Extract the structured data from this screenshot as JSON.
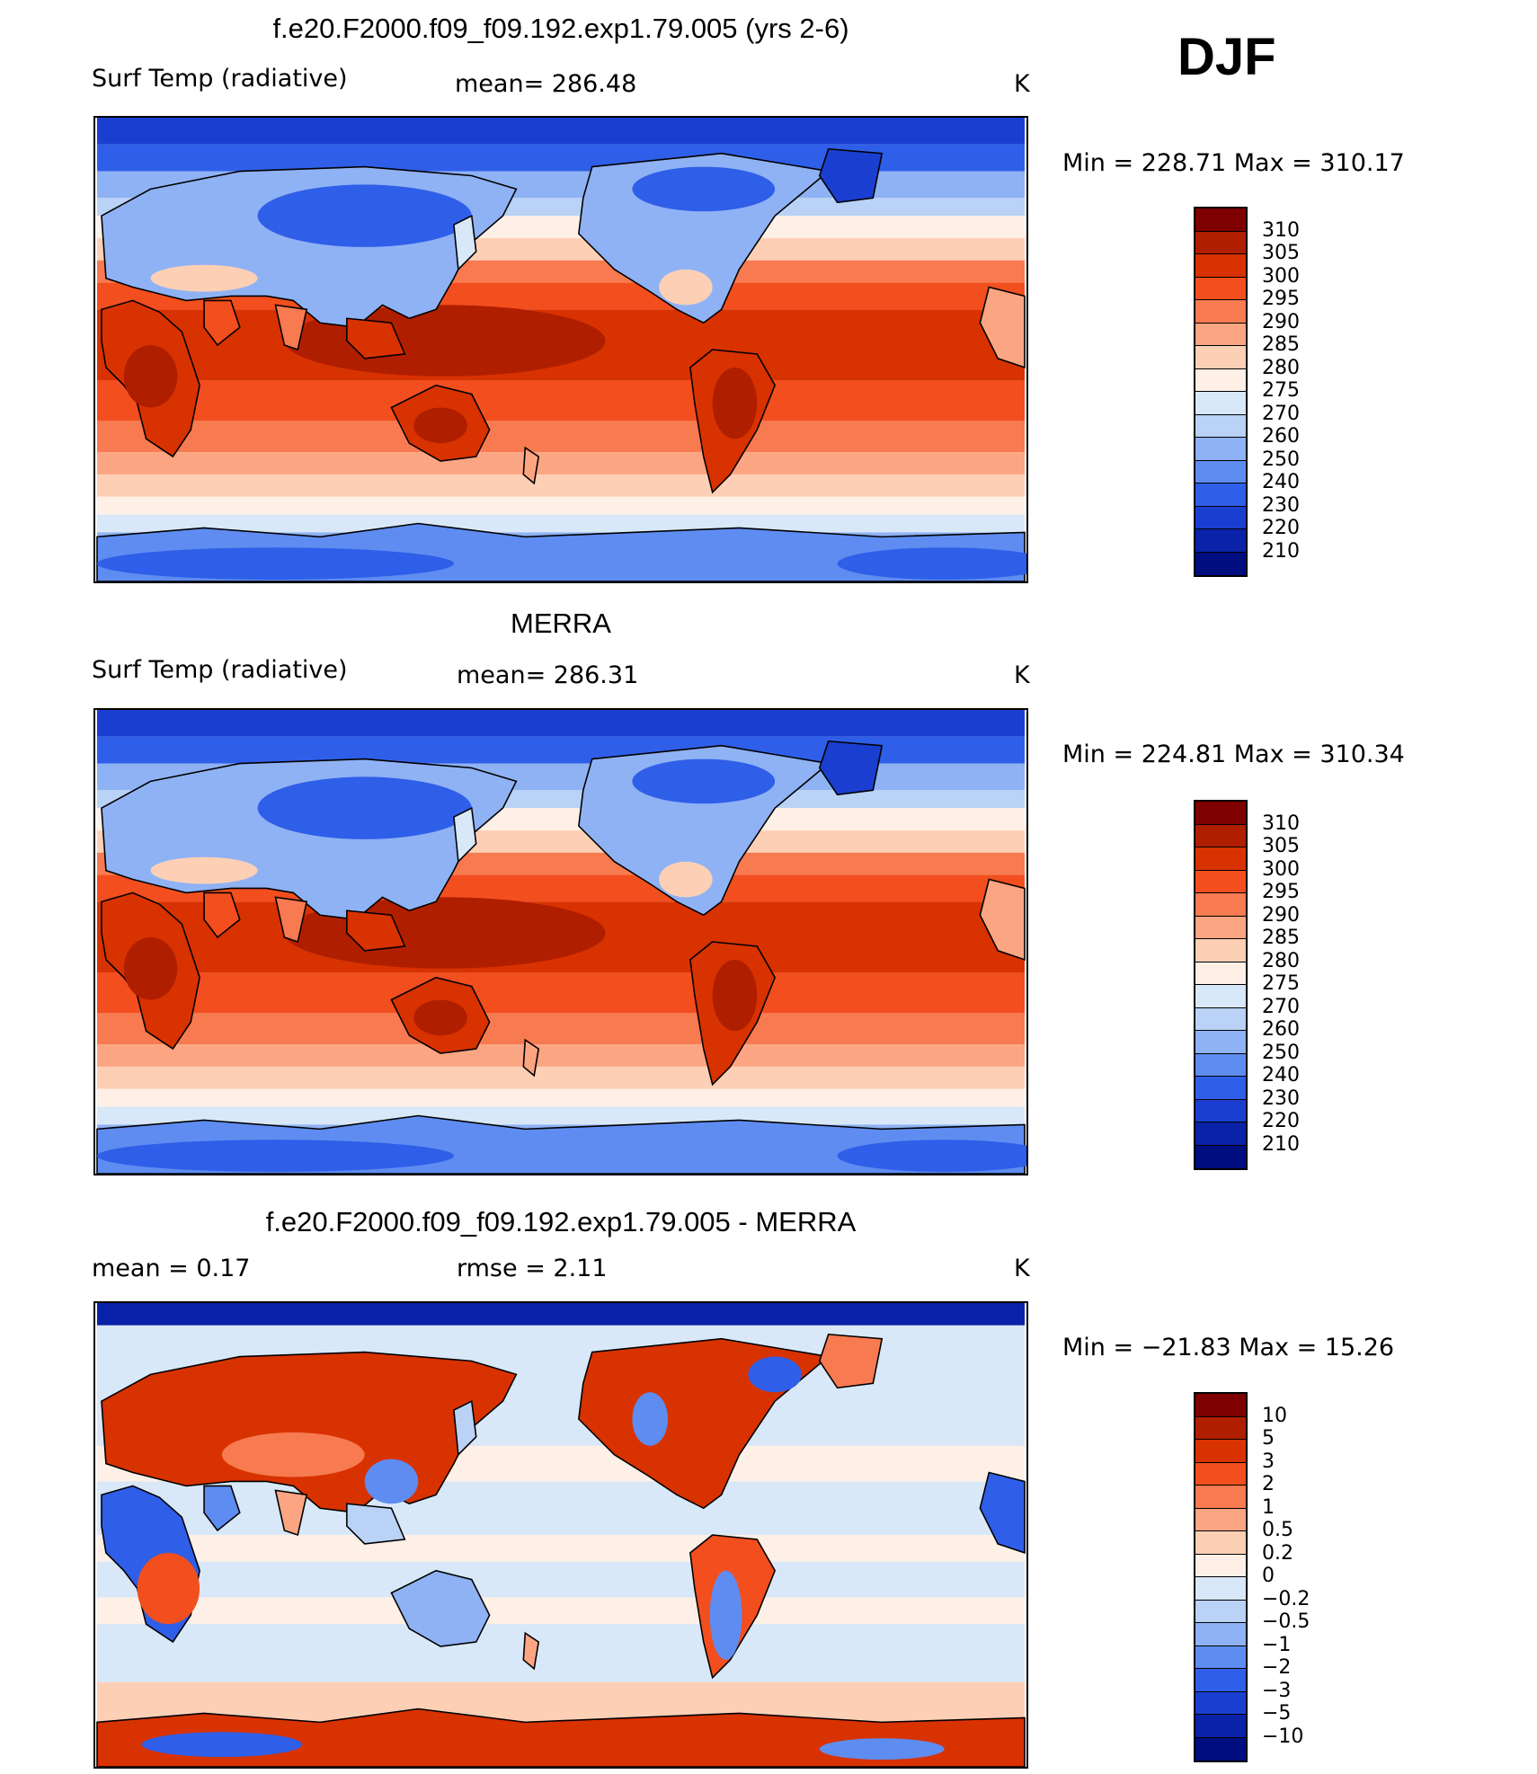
{
  "season": "DJF",
  "units": "K",
  "panels": [
    {
      "id": "model",
      "title": "f.e20.F2000.f09_f09.192.exp1.79.005 (yrs 2-6)",
      "left_label": "Surf Temp (radiative)",
      "mid_label": "mean=  286.48",
      "right_label": "K",
      "minmax": "Min  =  228.71  Max  =  310.17",
      "colorbar_labels": [
        "310",
        "305",
        "300",
        "295",
        "290",
        "285",
        "280",
        "275",
        "270",
        "260",
        "250",
        "240",
        "230",
        "220",
        "210"
      ]
    },
    {
      "id": "obs",
      "title": "MERRA",
      "left_label": "Surf Temp (radiative)",
      "mid_label": "mean=  286.31",
      "right_label": "K",
      "minmax": "Min  =  224.81  Max  =  310.34",
      "colorbar_labels": [
        "310",
        "305",
        "300",
        "295",
        "290",
        "285",
        "280",
        "275",
        "270",
        "260",
        "250",
        "240",
        "230",
        "220",
        "210"
      ]
    },
    {
      "id": "diff",
      "title": "f.e20.F2000.f09_f09.192.exp1.79.005 - MERRA",
      "left_label": "mean =     0.17",
      "mid_label": "rmse =     2.11",
      "right_label": "K",
      "minmax": "Min  =  −21.83  Max  =    15.26",
      "colorbar_labels": [
        "10",
        "5",
        "3",
        "2",
        "1",
        "0.5",
        "0.2",
        "0",
        "−0.2",
        "−0.5",
        "−1",
        "−2",
        "−3",
        "−5",
        "−10"
      ]
    }
  ],
  "colors": {
    "abs_scale": [
      "#7f0000",
      "#b01e00",
      "#d83200",
      "#f24e1e",
      "#f77a50",
      "#fba582",
      "#fdd0b6",
      "#fef0e6",
      "#d8e8f8",
      "#b9d2f6",
      "#8fb2f4",
      "#5f8cf0",
      "#2f5fe8",
      "#1a3fd0",
      "#0a22a8",
      "#000e80"
    ],
    "diff_scale": [
      "#7f0000",
      "#b01e00",
      "#d83200",
      "#f24e1e",
      "#f77a50",
      "#fba582",
      "#fdd0b6",
      "#fef0e6",
      "#d8e8f8",
      "#b9d2f6",
      "#8fb2f4",
      "#5f8cf0",
      "#2f5fe8",
      "#1a3fd0",
      "#0a22a8",
      "#000e80"
    ],
    "coast": "#000000"
  }
}
